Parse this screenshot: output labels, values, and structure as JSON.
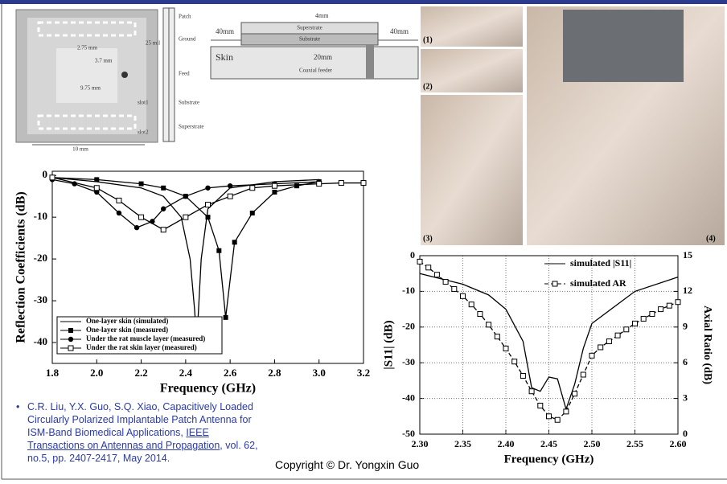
{
  "diagram": {
    "patch": "Patch",
    "ground": "Ground",
    "feed": "Feed",
    "substrate": "Substrate",
    "superstrate": "Superstrate",
    "slot1": "slot1",
    "slot2": "slot2",
    "width": "10 mm",
    "thickness": "25 mil",
    "dim1": "2.75 mm",
    "dim2": "3.7 mm",
    "dim3": "9.75 mm",
    "section": {
      "left": "40mm",
      "right": "40mm",
      "top": "4mm",
      "superstrate": "Superstrate",
      "substrate": "Substrate",
      "skin": "Skin",
      "depth": "20mm",
      "feeder": "Coaxial feeder"
    }
  },
  "photos": [
    {
      "label": "(1)"
    },
    {
      "label": "(2)"
    },
    {
      "label": "(3)"
    },
    {
      "label": "(4)"
    }
  ],
  "chart_data": [
    {
      "type": "line",
      "x_label": "Frequency (GHz)",
      "y_label": "Reflection Coefficients (dB)",
      "xlim": [
        1.8,
        3.2
      ],
      "xticks": [
        1.8,
        {
          "value": 2,
          "label": "2.0"
        },
        2.2,
        2.4,
        2.6,
        2.8,
        {
          "value": 3,
          "label": "3.0"
        },
        3.2
      ],
      "ylim": [
        -45,
        1
      ],
      "yticks": [
        0,
        -10,
        -20,
        -30,
        -40
      ],
      "grid": false,
      "legend": "lower left",
      "series": [
        {
          "name": "One-layer skin (simulated)",
          "color": "#000000",
          "marker": "none",
          "x": [
            1.8,
            2.0,
            2.2,
            2.3,
            2.38,
            2.42,
            2.44,
            2.45,
            2.47,
            2.5,
            2.6,
            2.8,
            3.0
          ],
          "values": [
            -0.5,
            -1.5,
            -3,
            -5,
            -10,
            -20,
            -32,
            -40,
            -20,
            -8,
            -3,
            -1.5,
            -1
          ]
        },
        {
          "name": "One-layer skin (measured)",
          "color": "#000000",
          "marker": "square-filled",
          "x": [
            1.8,
            2.0,
            2.2,
            2.3,
            2.4,
            2.5,
            2.55,
            2.58,
            2.62,
            2.7,
            2.8,
            2.9,
            3.0
          ],
          "values": [
            -0.5,
            -1,
            -2,
            -3,
            -5,
            -10,
            -18,
            -34,
            -16,
            -9,
            -4,
            -2.5,
            -1.5
          ]
        },
        {
          "name": "Under the rat muscle layer (measured)",
          "color": "#000000",
          "marker": "circle-filled",
          "x": [
            1.8,
            1.9,
            2.0,
            2.1,
            2.18,
            2.25,
            2.3,
            2.4,
            2.5,
            2.6,
            2.8,
            3.0
          ],
          "values": [
            -1,
            -2,
            -4,
            -9,
            -12.5,
            -11,
            -8,
            -5,
            -3,
            -2.5,
            -2,
            -1.5
          ]
        },
        {
          "name": "Under the rat skin layer (measured)",
          "color": "#000000",
          "marker": "square-open",
          "x": [
            1.8,
            2.0,
            2.1,
            2.2,
            2.3,
            2.4,
            2.5,
            2.6,
            2.7,
            2.8,
            3.0,
            3.1,
            3.2
          ],
          "values": [
            -0.5,
            -3,
            -6,
            -10,
            -13,
            -10,
            -7,
            -5,
            -3,
            -2.5,
            -2,
            -1.8,
            -1.8
          ]
        }
      ]
    },
    {
      "type": "line",
      "x_label": "Frequency (GHz)",
      "y_label": "|S11| (dB)",
      "y2_label": "Axial Ratio (dB)",
      "xlim": [
        2.3,
        2.6
      ],
      "xticks": [
        {
          "value": 2.3,
          "label": "2.30"
        },
        2.35,
        {
          "value": 2.4,
          "label": "2.40"
        },
        2.45,
        {
          "value": 2.5,
          "label": "2.50"
        },
        2.55,
        {
          "value": 2.6,
          "label": "2.60"
        }
      ],
      "ylim": [
        -50,
        0
      ],
      "yticks": [
        0,
        -10,
        -20,
        -30,
        -40,
        -50
      ],
      "y2lim": [
        0,
        15
      ],
      "y2ticks": [
        0,
        3,
        6,
        9,
        12,
        15
      ],
      "grid": true,
      "legend": "upper right",
      "series": [
        {
          "name": "simulated |S11|",
          "color": "#000000",
          "marker": "none",
          "x": [
            2.3,
            2.35,
            2.38,
            2.4,
            2.42,
            2.43,
            2.44,
            2.45,
            2.46,
            2.47,
            2.48,
            2.49,
            2.5,
            2.55,
            2.6
          ],
          "values": [
            -5,
            -8,
            -11,
            -15,
            -24,
            -37,
            -38,
            -34,
            -34.5,
            -43,
            -36,
            -26,
            -19,
            -10,
            -6
          ]
        },
        {
          "name": "simulated AR",
          "color": "#000000",
          "marker": "square-open",
          "dash": true,
          "axis": "y2",
          "x": [
            2.3,
            2.31,
            2.32,
            2.33,
            2.34,
            2.35,
            2.36,
            2.37,
            2.38,
            2.39,
            2.4,
            2.41,
            2.42,
            2.43,
            2.44,
            2.45,
            2.46,
            2.47,
            2.48,
            2.49,
            2.5,
            2.51,
            2.52,
            2.53,
            2.54,
            2.55,
            2.56,
            2.57,
            2.58,
            2.59,
            2.6
          ],
          "values": [
            14.5,
            14.0,
            13.4,
            12.8,
            12.2,
            11.6,
            10.9,
            10.1,
            9.2,
            8.2,
            7.2,
            6.1,
            4.9,
            3.6,
            2.4,
            1.5,
            1.2,
            1.9,
            3.4,
            5.0,
            6.6,
            7.3,
            7.8,
            8.3,
            8.8,
            9.3,
            9.7,
            10.1,
            10.5,
            10.8,
            11.1
          ]
        }
      ]
    }
  ],
  "citation": {
    "authors_title": "C.R. Liu, Y.X. Guo, S.Q. Xiao, Capacitively Loaded Circularly Polarized Implantable Patch Antenna for ISM-Band Biomedical Applications, ",
    "journal": "IEEE Transactions on Antennas and Propagation",
    "details": ", vol. 62, no.5, pp. 2407-2417, May 2014."
  },
  "copyright": "Copyright © Dr. Yongxin Guo"
}
